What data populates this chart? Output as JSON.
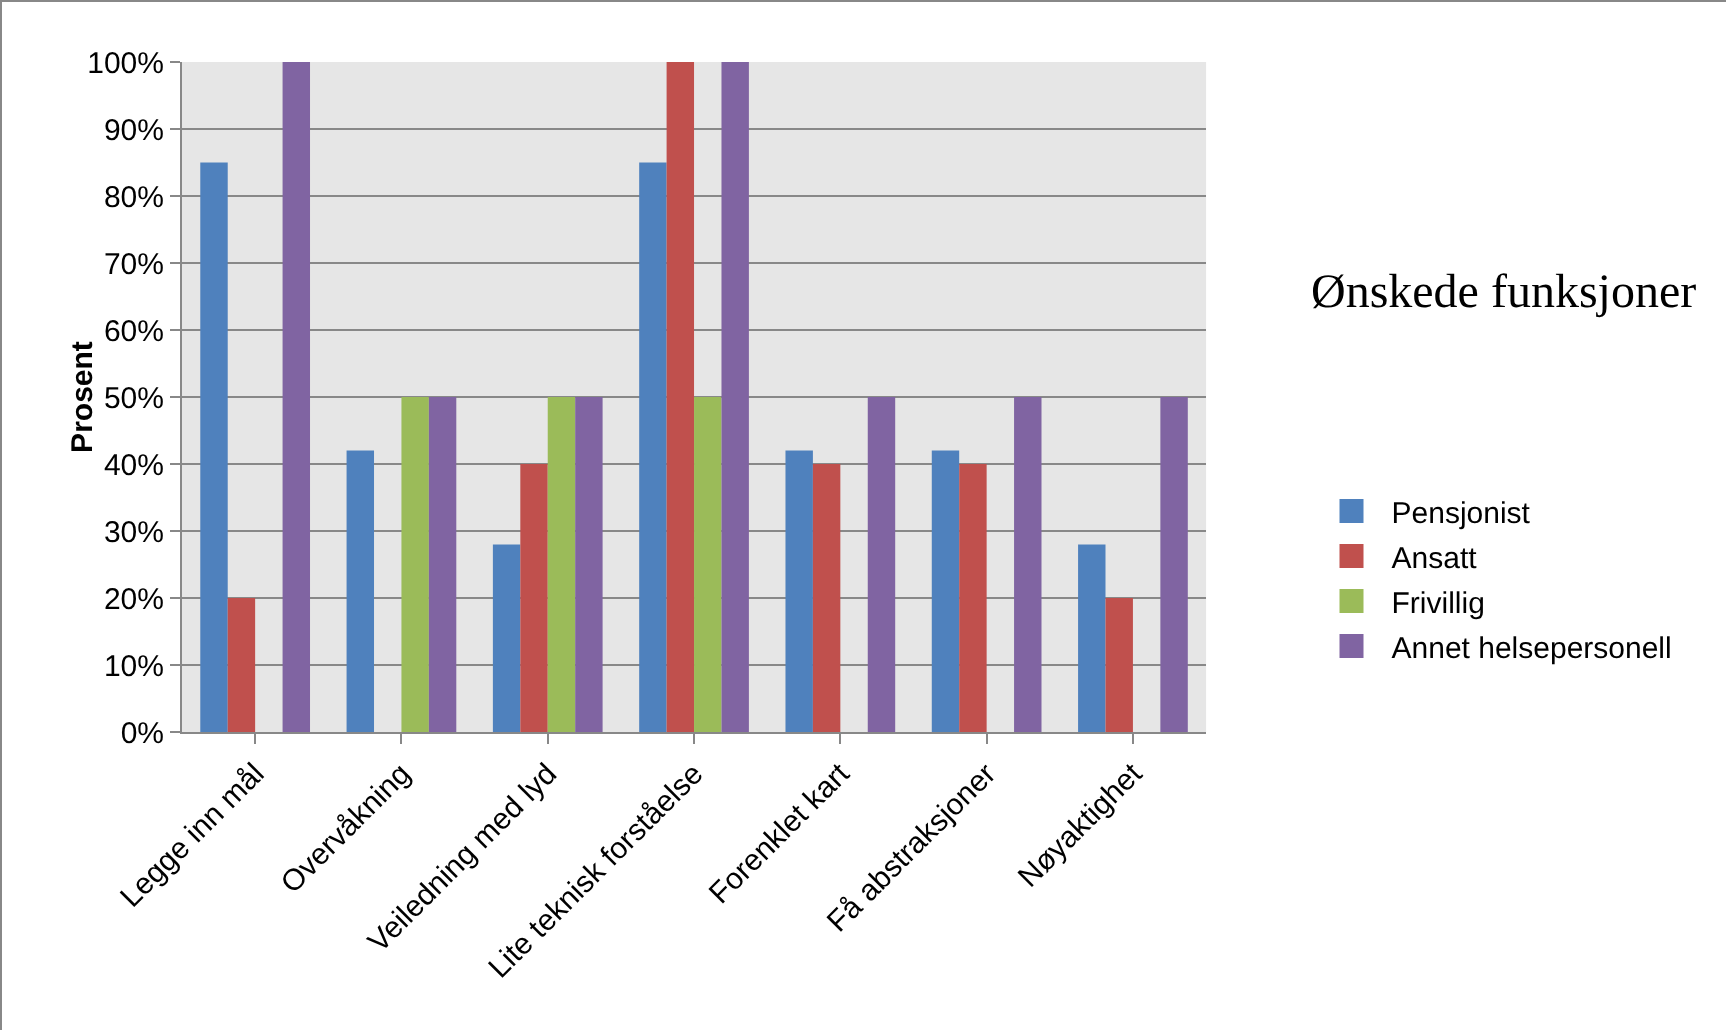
{
  "chart_data": {
    "type": "bar",
    "title": "Ønskede funksjoner",
    "ylabel": "Prosent",
    "categories": [
      "Legge inn mål",
      "Overvåkning",
      "Veiledning med lyd",
      "Lite teknisk forståelse",
      "Forenklet kart",
      "Få abstraksjoner",
      "Nøyaktighet"
    ],
    "series": [
      {
        "name": "Pensjonist",
        "color": "#4f81bd",
        "values": [
          85,
          42,
          28,
          85,
          42,
          42,
          28
        ]
      },
      {
        "name": "Ansatt",
        "color": "#c0504d",
        "values": [
          20,
          0,
          40,
          100,
          40,
          40,
          20
        ]
      },
      {
        "name": "Frivillig",
        "color": "#9bbb59",
        "values": [
          0,
          50,
          50,
          50,
          0,
          0,
          0
        ]
      },
      {
        "name": "Annet helsepersonell",
        "color": "#8064a2",
        "values": [
          100,
          50,
          50,
          100,
          50,
          50,
          50
        ]
      }
    ],
    "ylim": [
      0,
      100
    ],
    "yticks": [
      {
        "value": 0,
        "label": "0%"
      },
      {
        "value": 10,
        "label": "10%"
      },
      {
        "value": 20,
        "label": "20%"
      },
      {
        "value": 30,
        "label": "30%"
      },
      {
        "value": 40,
        "label": "40%"
      },
      {
        "value": 50,
        "label": "50%"
      },
      {
        "value": 60,
        "label": "60%"
      },
      {
        "value": 70,
        "label": "70%"
      },
      {
        "value": 80,
        "label": "80%"
      },
      {
        "value": 90,
        "label": "90%"
      },
      {
        "value": 100,
        "label": "100%"
      }
    ],
    "grid": "y",
    "legend": "right"
  }
}
